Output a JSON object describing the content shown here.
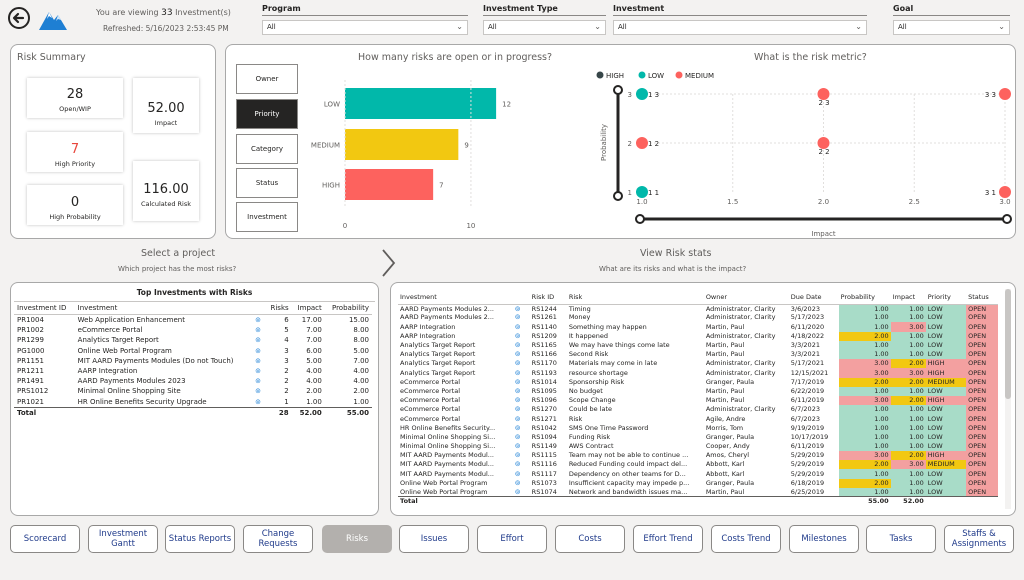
{
  "header": {
    "viewing_prefix": "You are viewing",
    "viewing_count": "33",
    "viewing_suffix": "Investment(s)",
    "refreshed": "Refreshed: 5/16/2023 2:53:45 PM"
  },
  "filters": [
    {
      "label": "Program",
      "value": "All"
    },
    {
      "label": "Investment Type",
      "value": "All"
    },
    {
      "label": "Investment",
      "value": "All"
    },
    {
      "label": "Goal",
      "value": "All"
    }
  ],
  "risk_summary": {
    "title": "Risk Summary",
    "open_wip": {
      "value": "28",
      "label": "Open/WIP"
    },
    "impact": {
      "value": "52.00",
      "label": "Impact"
    },
    "high_priority": {
      "value": "7",
      "label": "High Priority"
    },
    "calculated_risk": {
      "value": "116.00",
      "label": "Calculated Risk"
    },
    "high_probability": {
      "value": "0",
      "label": "High Probability"
    }
  },
  "slicer": [
    "Owner",
    "Priority",
    "Category",
    "Status",
    "Investment"
  ],
  "bar_title": "How many risks are open or in progress?",
  "scatter_title": "What is the risk metric?",
  "chart_data": [
    {
      "type": "bar",
      "title": "How many risks are open or in progress?",
      "categories": [
        "LOW",
        "MEDIUM",
        "HIGH"
      ],
      "values": [
        12,
        9,
        7
      ],
      "colors": [
        "#01b8aa",
        "#f2c811",
        "#fd625e"
      ],
      "xticks": [
        "0",
        "10"
      ],
      "xlim": [
        0,
        13.5
      ]
    },
    {
      "type": "scatter",
      "title": "What is the risk metric?",
      "xlabel": "Impact",
      "ylabel": "Probability",
      "xlim": [
        1,
        3
      ],
      "ylim": [
        1,
        3
      ],
      "xticks": [
        "1.0",
        "1.5",
        "2.0",
        "2.5",
        "3.0"
      ],
      "yticks": [
        "1",
        "2",
        "3"
      ],
      "legend": [
        {
          "name": "HIGH",
          "color": "#374649"
        },
        {
          "name": "LOW",
          "color": "#01b8aa"
        },
        {
          "name": "MEDIUM",
          "color": "#fd625e"
        }
      ],
      "points": [
        {
          "x": 1,
          "y": 3,
          "label": "1 3",
          "color": "#01b8aa"
        },
        {
          "x": 2,
          "y": 3,
          "label": "2 3",
          "color": "#fd625e"
        },
        {
          "x": 3,
          "y": 3,
          "label": "3 3",
          "color": "#fd625e"
        },
        {
          "x": 1,
          "y": 2,
          "label": "1 2",
          "color": "#fd625e"
        },
        {
          "x": 2,
          "y": 2,
          "label": "2 2",
          "color": "#fd625e"
        },
        {
          "x": 1,
          "y": 1,
          "label": "1 1",
          "color": "#01b8aa"
        },
        {
          "x": 3,
          "y": 1,
          "label": "3 1",
          "color": "#fd625e"
        }
      ]
    }
  ],
  "select_project": {
    "title": "Select a project",
    "subtitle": "Which project has the most risks?"
  },
  "view_stats": {
    "title": "View Risk stats",
    "subtitle": "What are its risks and what is the impact?"
  },
  "top_investments": {
    "title": "Top Investments with Risks",
    "columns": [
      "Investment ID",
      "Investment",
      "",
      "Risks",
      "Impact",
      "Probability"
    ],
    "rows": [
      [
        "PR1004",
        "Web Application Enhancement",
        "6",
        "17.00",
        "15.00"
      ],
      [
        "PR1002",
        "eCommerce Portal",
        "5",
        "7.00",
        "8.00"
      ],
      [
        "PR1299",
        "Analytics Target Report",
        "4",
        "7.00",
        "8.00"
      ],
      [
        "PG1000",
        "Online Web Portal Program",
        "3",
        "6.00",
        "5.00"
      ],
      [
        "PR1151",
        "MIT AARD Payments Modules (Do not Touch)",
        "3",
        "5.00",
        "7.00"
      ],
      [
        "PR1211",
        "AARP Integration",
        "2",
        "4.00",
        "4.00"
      ],
      [
        "PR1491",
        "AARD Payments Modules 2023",
        "2",
        "4.00",
        "4.00"
      ],
      [
        "PRS1012",
        "Minimal Online Shopping Site",
        "2",
        "2.00",
        "2.00"
      ],
      [
        "PR1021",
        "HR Online Benefits Security Upgrade",
        "1",
        "1.00",
        "1.00"
      ]
    ],
    "total": [
      "Total",
      "",
      "28",
      "52.00",
      "55.00"
    ]
  },
  "risk_table": {
    "columns": [
      "Investment",
      "",
      "Risk ID",
      "Risk",
      "Owner",
      "Due Date",
      "Probability",
      "Impact",
      "Priority",
      "Status"
    ],
    "rows": [
      [
        "AARD Payments Modules 2...",
        "RS1244",
        "Timing",
        "Administrator, Clarity",
        "3/6/2023",
        "1.00",
        "1.00",
        "LOW",
        "OPEN"
      ],
      [
        "AARD Payments Modules 2...",
        "RS1261",
        "Money",
        "Administrator, Clarity",
        "5/17/2023",
        "1.00",
        "1.00",
        "LOW",
        "OPEN"
      ],
      [
        "AARP Integration",
        "RS1140",
        "Something may happen",
        "Martin, Paul",
        "6/11/2020",
        "1.00",
        "3.00",
        "LOW",
        "OPEN"
      ],
      [
        "AARP Integration",
        "RS1209",
        "It happened",
        "Administrator, Clarity",
        "4/18/2022",
        "2.00",
        "1.00",
        "LOW",
        "OPEN"
      ],
      [
        "Analytics Target Report",
        "RS1165",
        "We may have things come late",
        "Martin, Paul",
        "3/3/2021",
        "1.00",
        "1.00",
        "LOW",
        "OPEN"
      ],
      [
        "Analytics Target Report",
        "RS1166",
        "Second Risk",
        "Martin, Paul",
        "3/3/2021",
        "1.00",
        "1.00",
        "LOW",
        "OPEN"
      ],
      [
        "Analytics Target Report",
        "RS1170",
        "Materials may come in late",
        "Administrator, Clarity",
        "5/17/2021",
        "3.00",
        "2.00",
        "HIGH",
        "OPEN"
      ],
      [
        "Analytics Target Report",
        "RS1193",
        "resource shortage",
        "Administrator, Clarity",
        "12/15/2021",
        "3.00",
        "3.00",
        "HIGH",
        "OPEN"
      ],
      [
        "eCommerce Portal",
        "RS1014",
        "Sponsorship Risk",
        "Granger, Paula",
        "7/17/2019",
        "2.00",
        "2.00",
        "MEDIUM",
        "OPEN"
      ],
      [
        "eCommerce Portal",
        "RS1095",
        "No budget",
        "Martin, Paul",
        "6/22/2019",
        "1.00",
        "1.00",
        "LOW",
        "OPEN"
      ],
      [
        "eCommerce Portal",
        "RS1096",
        "Scope Change",
        "Martin, Paul",
        "6/11/2019",
        "3.00",
        "2.00",
        "HIGH",
        "OPEN"
      ],
      [
        "eCommerce Portal",
        "RS1270",
        "Could be late",
        "Administrator, Clarity",
        "6/7/2023",
        "1.00",
        "1.00",
        "LOW",
        "OPEN"
      ],
      [
        "eCommerce Portal",
        "RS1271",
        "Risk",
        "Agile, Andre",
        "6/7/2023",
        "1.00",
        "1.00",
        "LOW",
        "OPEN"
      ],
      [
        "HR Online Benefits Security...",
        "RS1042",
        "SMS One Time Password",
        "Morris, Tom",
        "9/19/2019",
        "1.00",
        "1.00",
        "LOW",
        "OPEN"
      ],
      [
        "Minimal Online Shopping Si...",
        "RS1094",
        "Funding Risk",
        "Granger, Paula",
        "10/17/2019",
        "1.00",
        "1.00",
        "LOW",
        "OPEN"
      ],
      [
        "Minimal Online Shopping Si...",
        "RS1149",
        "AWS Contract",
        "Cooper, Andy",
        "6/11/2019",
        "1.00",
        "1.00",
        "LOW",
        "OPEN"
      ],
      [
        "MIT AARD Payments Modul...",
        "RS1115",
        "Team may not be able to continue ...",
        "Amos, Cheryl",
        "5/29/2019",
        "3.00",
        "2.00",
        "HIGH",
        "OPEN"
      ],
      [
        "MIT AARD Payments Modul...",
        "RS1116",
        "Reduced Funding could impact del...",
        "Abbott, Karl",
        "5/29/2019",
        "2.00",
        "3.00",
        "MEDIUM",
        "OPEN"
      ],
      [
        "MIT AARD Payments Modul...",
        "RS1117",
        "Dependency on other teams for D...",
        "Abbott, Karl",
        "5/29/2019",
        "1.00",
        "1.00",
        "LOW",
        "OPEN"
      ],
      [
        "Online Web Portal Program",
        "RS1073",
        "Insufficient capacity may impede p...",
        "Granger, Paula",
        "6/18/2019",
        "2.00",
        "1.00",
        "LOW",
        "OPEN"
      ],
      [
        "Online Web Portal Program",
        "RS1074",
        "Network and bandwidth issues ma...",
        "Martin, Paul",
        "6/25/2019",
        "1.00",
        "1.00",
        "LOW",
        "OPEN"
      ]
    ],
    "total": [
      "Total",
      "",
      "",
      "",
      "",
      "",
      "55.00",
      "52.00",
      "",
      ""
    ]
  },
  "nav": [
    "Scorecard",
    "Investment Gantt",
    "Status Reports",
    "Change Requests",
    "Risks",
    "Issues",
    "Effort",
    "Costs",
    "Effort Trend",
    "Costs Trend",
    "Milestones",
    "Tasks",
    "Staffs & Assignments"
  ],
  "nav_selected": "Risks"
}
